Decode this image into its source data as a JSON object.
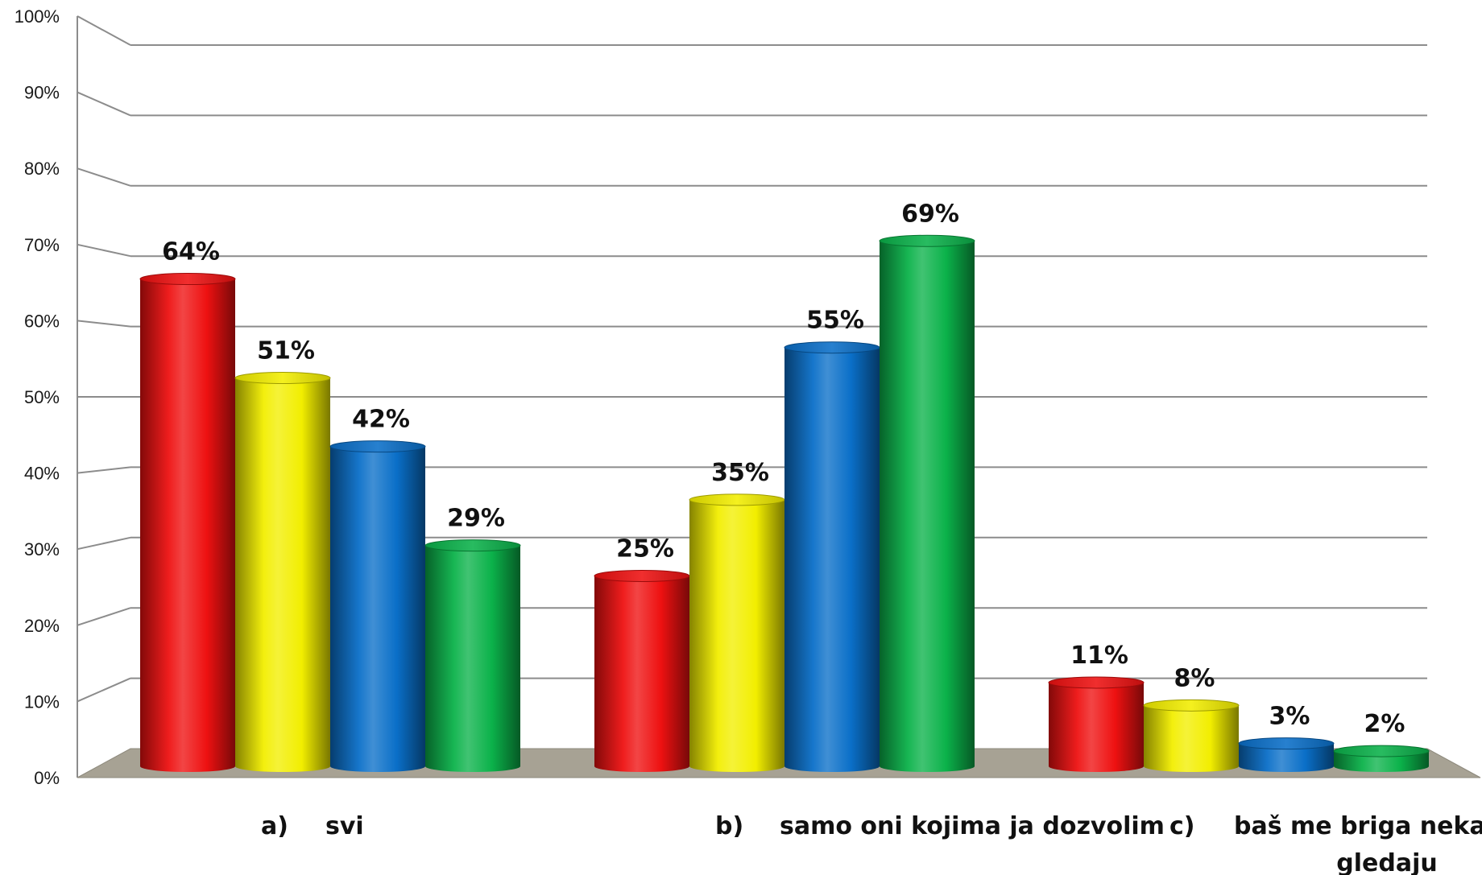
{
  "chart_data": {
    "type": "bar",
    "ylim": [
      0,
      100
    ],
    "y_ticks": [
      "0%",
      "10%",
      "20%",
      "30%",
      "40%",
      "50%",
      "60%",
      "70%",
      "80%",
      "90%",
      "100%"
    ],
    "grid": true,
    "categories": [
      {
        "letter": "a)",
        "text": [
          "svi"
        ]
      },
      {
        "letter": "b)",
        "text": [
          "samo oni kojima ja dozvolim"
        ]
      },
      {
        "letter": "c)",
        "text": [
          "baš me briga neka čitaju i",
          "gledaju"
        ]
      }
    ],
    "series": [
      {
        "color": "#ee1111",
        "values": [
          64,
          25,
          11
        ],
        "labels": [
          "64%",
          "25%",
          "11%"
        ]
      },
      {
        "color": "#f2ee00",
        "values": [
          51,
          35,
          8
        ],
        "labels": [
          "51%",
          "35%",
          "8%"
        ]
      },
      {
        "color": "#0a6fc8",
        "values": [
          42,
          55,
          3
        ],
        "labels": [
          "42%",
          "55%",
          "3%"
        ]
      },
      {
        "color": "#0bb24a",
        "values": [
          29,
          69,
          2
        ],
        "labels": [
          "29%",
          "69%",
          "2%"
        ]
      }
    ],
    "colors": {
      "floor": "#a7a294",
      "wall_lines": "#8c8c8c"
    }
  }
}
